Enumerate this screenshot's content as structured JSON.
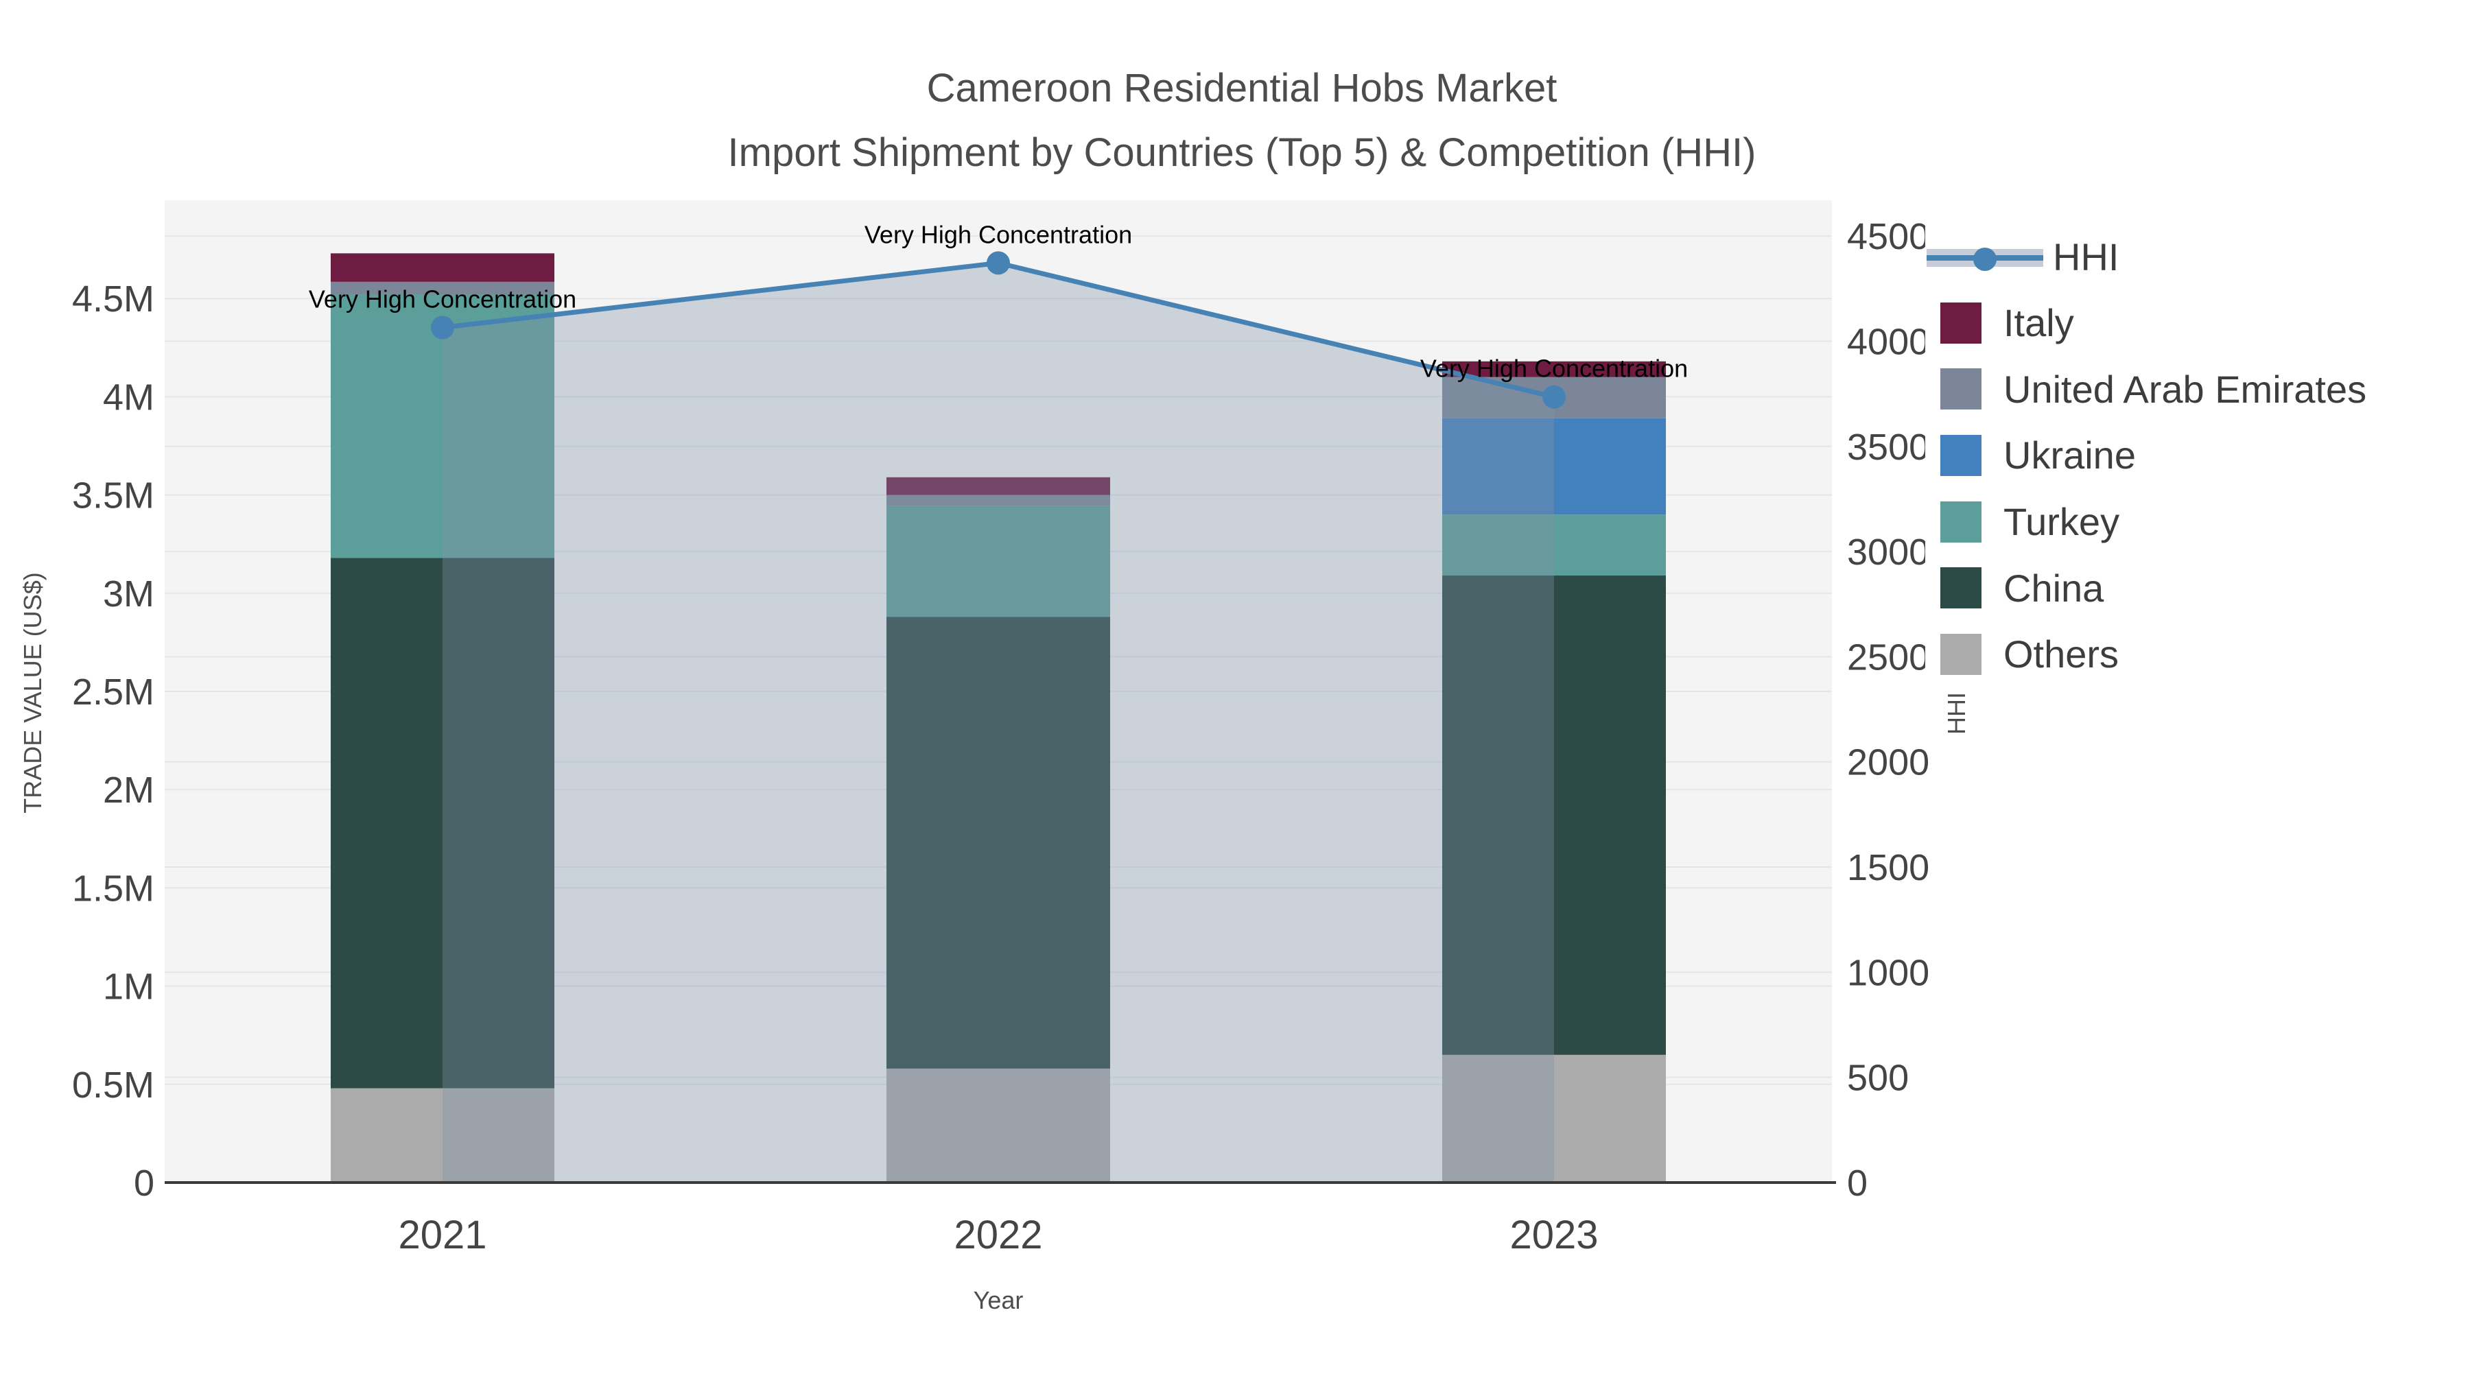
{
  "title": {
    "line1": "Cameroon Residential Hobs Market",
    "line2": "Import Shipment by Countries (Top 5) & Competition (HHI)"
  },
  "chart_data": {
    "type": "bar+line",
    "categories": [
      "2021",
      "2022",
      "2023"
    ],
    "xlabel": "Year",
    "ylabel_left": "TRADE VALUE (US$)",
    "ylabel_right": "HHI",
    "bar_stack_order_bottom_to_top": [
      "Others",
      "China",
      "Turkey",
      "Ukraine",
      "United Arab Emirates",
      "Italy"
    ],
    "bar_series": [
      {
        "name": "Others",
        "color": "#ababab",
        "values": [
          480000,
          580000,
          650000
        ]
      },
      {
        "name": "China",
        "color": "#2c4b46",
        "values": [
          2700000,
          2300000,
          2440000
        ]
      },
      {
        "name": "Turkey",
        "color": "#5c9e99",
        "values": [
          1340000,
          565000,
          310000
        ]
      },
      {
        "name": "Ukraine",
        "color": "#4381be",
        "values": [
          0,
          0,
          490000
        ]
      },
      {
        "name": "United Arab Emirates",
        "color": "#7b8799",
        "values": [
          65000,
          55000,
          210000
        ]
      },
      {
        "name": "Italy",
        "color": "#6e1c42",
        "values": [
          145000,
          90000,
          80000
        ]
      }
    ],
    "bar_totals": [
      4730000,
      3590000,
      4180000
    ],
    "line_series": {
      "name": "HHI",
      "color": "#4682b4",
      "area_fill": "rgba(130,145,170,0.35)",
      "values": [
        4065,
        4372,
        3735
      ]
    },
    "annotations": [
      {
        "x": "2021",
        "text": "Very High Concentration"
      },
      {
        "x": "2022",
        "text": "Very High Concentration"
      },
      {
        "x": "2023",
        "text": "Very High Concentration"
      }
    ],
    "y_left": {
      "min": 0,
      "max": 5000000,
      "ticks": [
        0,
        500000,
        1000000,
        1500000,
        2000000,
        2500000,
        3000000,
        3500000,
        4000000,
        4500000
      ],
      "tick_labels": [
        "0",
        "0.5M",
        "1M",
        "1.5M",
        "2M",
        "2.5M",
        "3M",
        "3.5M",
        "4M",
        "4.5M"
      ]
    },
    "y_right": {
      "min": 0,
      "max": 4670,
      "ticks": [
        0,
        500,
        1000,
        1500,
        2000,
        2500,
        3000,
        3500,
        4000,
        4500
      ],
      "tick_labels": [
        "0",
        "500",
        "1000",
        "1500",
        "2000",
        "2500",
        "3000",
        "3500",
        "4000",
        "4500"
      ]
    },
    "grid": true,
    "legend_position": "right"
  },
  "legend": {
    "items": [
      {
        "label": "HHI",
        "type": "line",
        "color": "#4682b4"
      },
      {
        "label": "Italy",
        "type": "swatch",
        "color": "#6e1c42"
      },
      {
        "label": "United Arab Emirates",
        "type": "swatch",
        "color": "#7b8799"
      },
      {
        "label": "Ukraine",
        "type": "swatch",
        "color": "#4381be"
      },
      {
        "label": "Turkey",
        "type": "swatch",
        "color": "#5c9e99"
      },
      {
        "label": "China",
        "type": "swatch",
        "color": "#2c4b46"
      },
      {
        "label": "Others",
        "type": "swatch",
        "color": "#ababab"
      }
    ]
  },
  "colors": {
    "figure_bg": "#ffffff",
    "plot_bg": "#f4f4f4",
    "gridline": "#e4e6e8",
    "axis_line": "#3a3a3a",
    "tick_text": "#444444",
    "title_text": "#4c4c4c",
    "annotation_text": "#000000"
  }
}
